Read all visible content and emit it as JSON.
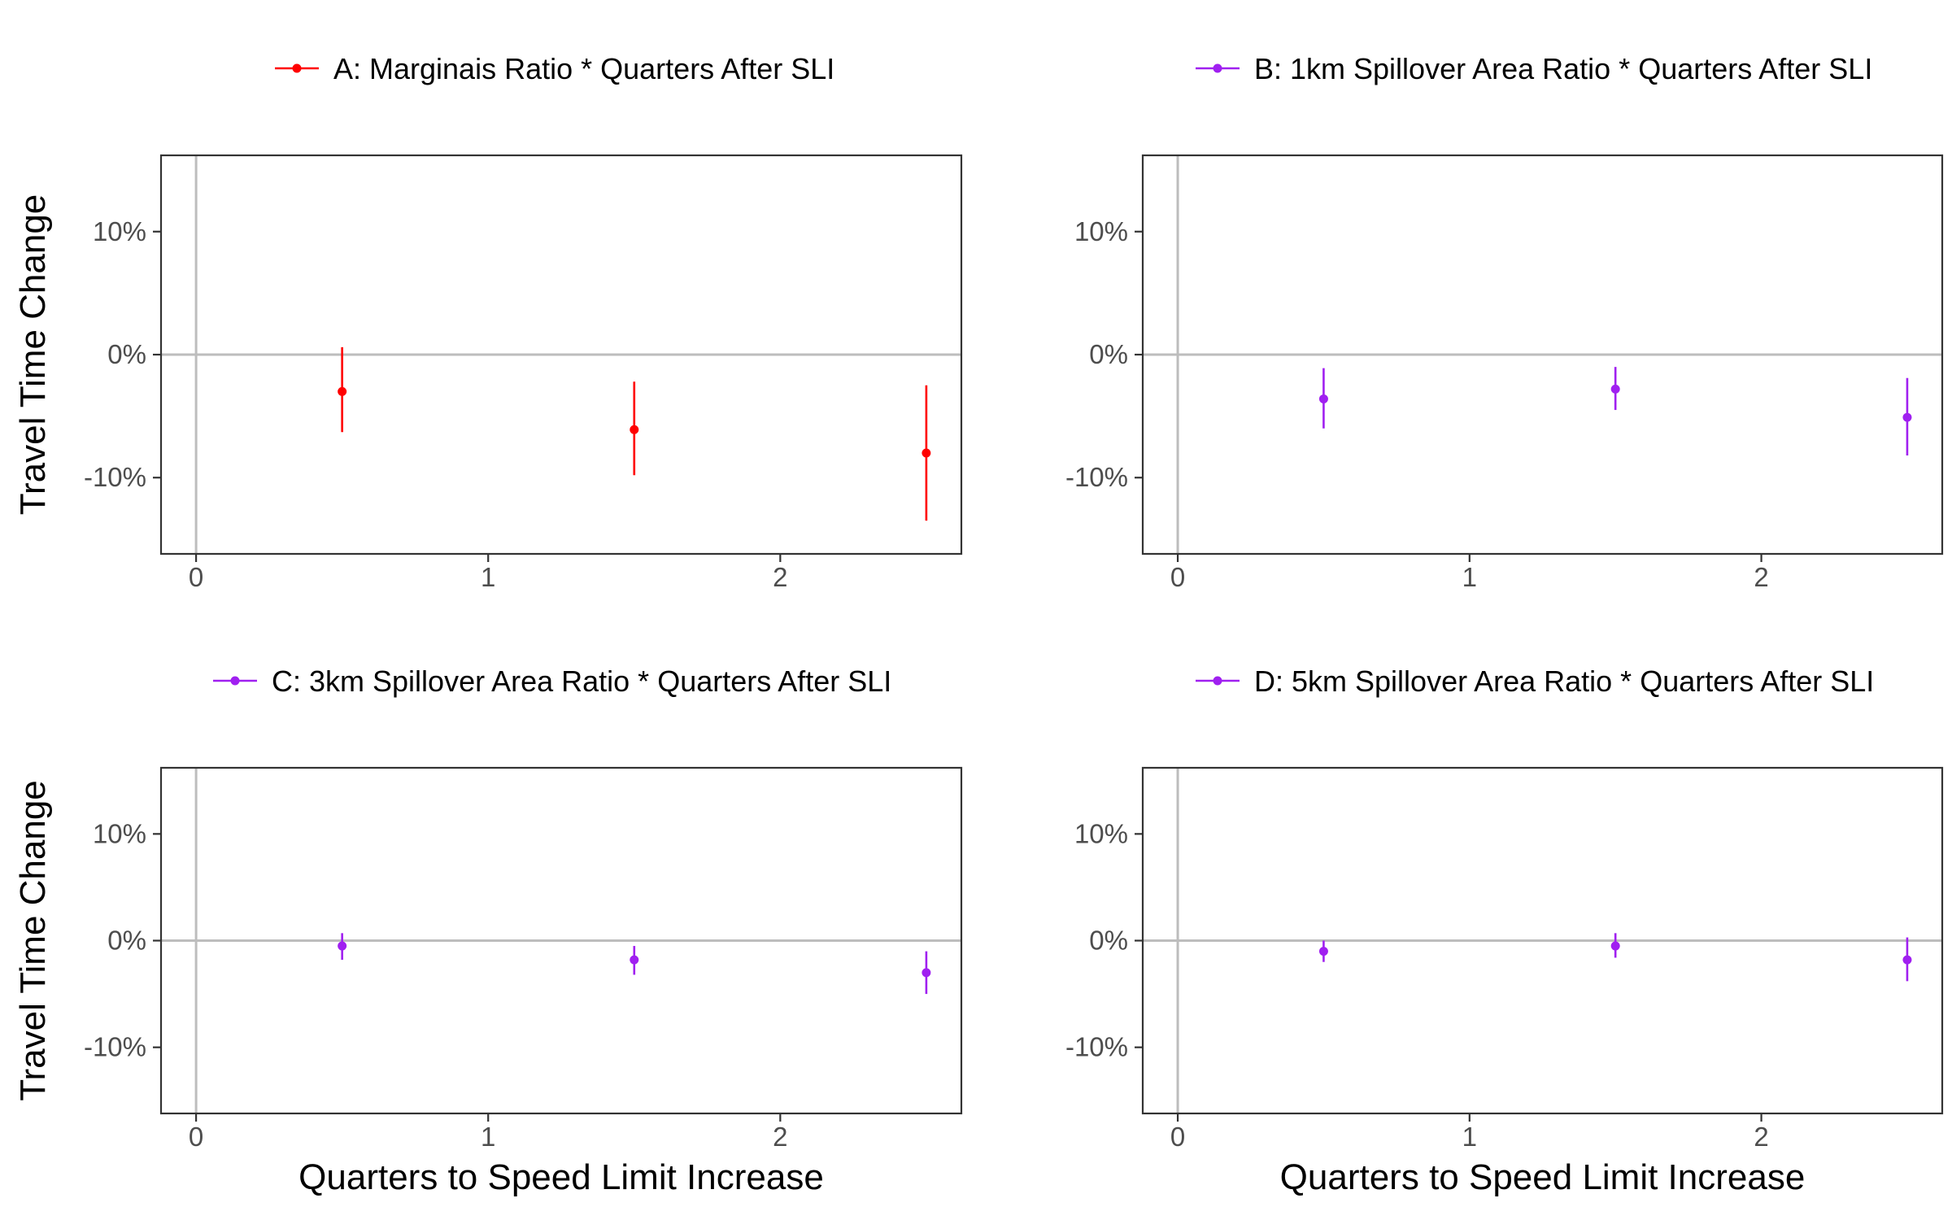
{
  "figure": {
    "ylabel": "Travel Time Change",
    "xlabel": "Quarters to Speed Limit Increase"
  },
  "chart_data": [
    {
      "type": "scatter",
      "panel": "A",
      "legend": "A:  Marginais Ratio * Quarters After SLI",
      "color": "#ff0000",
      "x": [
        0.5,
        1.5,
        2.5
      ],
      "y": [
        -3.0,
        -6.1,
        -8.0
      ],
      "ci_low": [
        -6.3,
        -9.8,
        -13.5
      ],
      "ci_high": [
        0.6,
        -2.2,
        -2.5
      ],
      "xlim": [
        -0.12,
        2.62
      ],
      "ylim": [
        -16.2,
        16.2
      ],
      "xticks": [
        "0",
        "1",
        "2"
      ],
      "yticks": [
        "10%",
        "0%",
        "-10%"
      ],
      "show_ylabel": true,
      "show_xlabel": false,
      "grid": false,
      "legend_position": "top"
    },
    {
      "type": "scatter",
      "panel": "B",
      "legend": "B:  1km Spillover Area Ratio * Quarters After SLI",
      "color": "#a020f0",
      "x": [
        0.5,
        1.5,
        2.5
      ],
      "y": [
        -3.6,
        -2.8,
        -5.1
      ],
      "ci_low": [
        -6.0,
        -4.5,
        -8.2
      ],
      "ci_high": [
        -1.1,
        -1.0,
        -1.9
      ],
      "xlim": [
        -0.12,
        2.62
      ],
      "ylim": [
        -16.2,
        16.2
      ],
      "xticks": [
        "0",
        "1",
        "2"
      ],
      "yticks": [
        "10%",
        "0%",
        "-10%"
      ],
      "show_ylabel": false,
      "show_xlabel": false,
      "grid": false,
      "legend_position": "top"
    },
    {
      "type": "scatter",
      "panel": "C",
      "legend": "C:  3km Spillover Area Ratio * Quarters After SLI",
      "color": "#a020f0",
      "x": [
        0.5,
        1.5,
        2.5
      ],
      "y": [
        -0.5,
        -1.8,
        -3.0
      ],
      "ci_low": [
        -1.8,
        -3.2,
        -5.0
      ],
      "ci_high": [
        0.7,
        -0.5,
        -1.0
      ],
      "xlim": [
        -0.12,
        2.62
      ],
      "ylim": [
        -16.2,
        16.2
      ],
      "xticks": [
        "0",
        "1",
        "2"
      ],
      "yticks": [
        "10%",
        "0%",
        "-10%"
      ],
      "show_ylabel": true,
      "show_xlabel": true,
      "grid": false,
      "legend_position": "top"
    },
    {
      "type": "scatter",
      "panel": "D",
      "legend": "D:  5km Spillover Area Ratio * Quarters After SLI",
      "color": "#a020f0",
      "x": [
        0.5,
        1.5,
        2.5
      ],
      "y": [
        -1.0,
        -0.5,
        -1.8
      ],
      "ci_low": [
        -2.0,
        -1.6,
        -3.8
      ],
      "ci_high": [
        0.0,
        0.7,
        0.3
      ],
      "xlim": [
        -0.12,
        2.62
      ],
      "ylim": [
        -16.2,
        16.2
      ],
      "xticks": [
        "0",
        "1",
        "2"
      ],
      "yticks": [
        "10%",
        "0%",
        "-10%"
      ],
      "show_ylabel": false,
      "show_xlabel": true,
      "grid": false,
      "legend_position": "top"
    }
  ]
}
